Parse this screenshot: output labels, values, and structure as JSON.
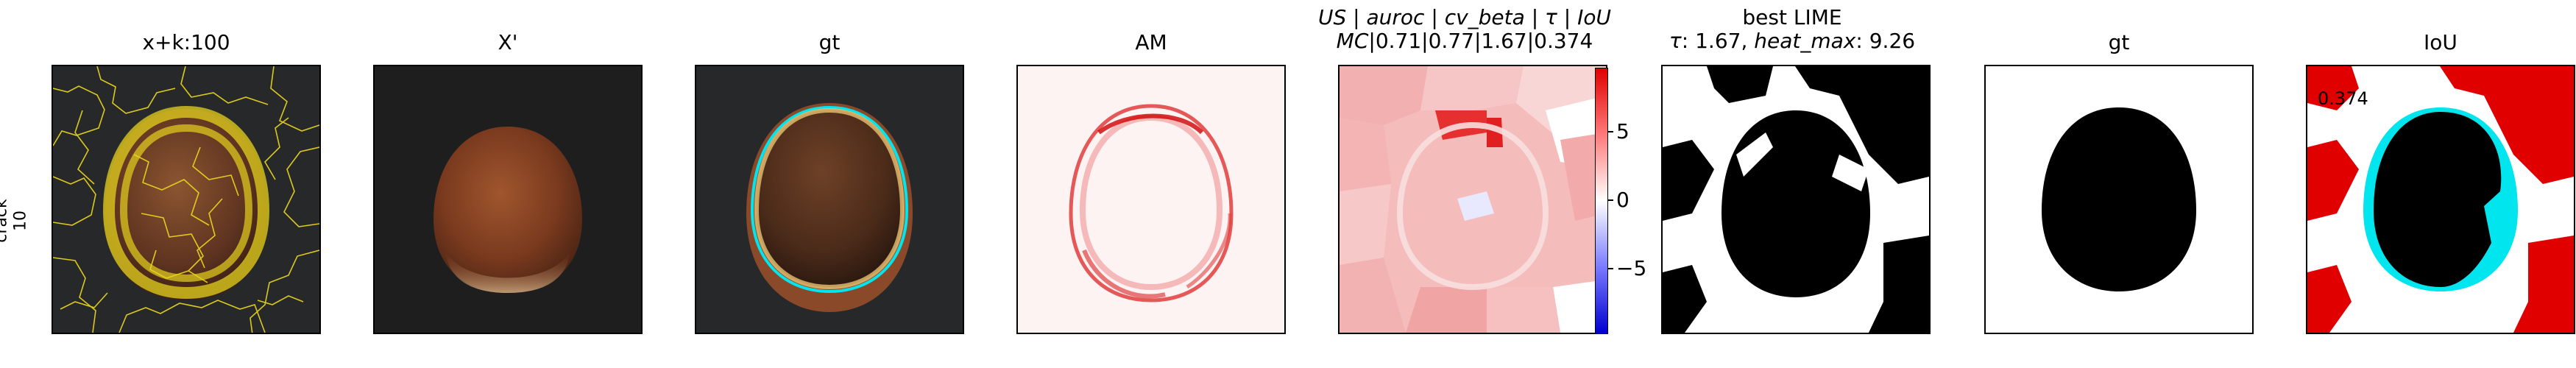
{
  "row_label": {
    "line1": "crack",
    "line2": "10"
  },
  "panels": [
    {
      "title": "x+k:100"
    },
    {
      "title": "X'"
    },
    {
      "title": "gt"
    },
    {
      "title": "AM"
    },
    {
      "title_line1_parts": [
        "US",
        "auroc",
        "cv_beta",
        "τ",
        "IoU"
      ],
      "title_line2_prefix": "MC",
      "title_line2_values": "|0.71|0.77|1.67|0.374"
    },
    {
      "title_line1": "best LIME",
      "title_line2_tau_symbol": "τ",
      "title_line2_tau_value": ": 1.67, ",
      "title_line2_heat_label": "heat_max",
      "title_line2_heat_value": ": 9.26"
    },
    {
      "title": "gt"
    },
    {
      "title": "IoU",
      "overlay_value": "0.374"
    }
  ],
  "colorbar": {
    "ticks": [
      "5",
      "0",
      "−5"
    ],
    "max": 9.26,
    "min": -9.26
  },
  "colors": {
    "yellow": "#e6d21e",
    "cyan": "#00e5ee",
    "red": "#e00000",
    "nut_brown": "#8a4a2a"
  }
}
